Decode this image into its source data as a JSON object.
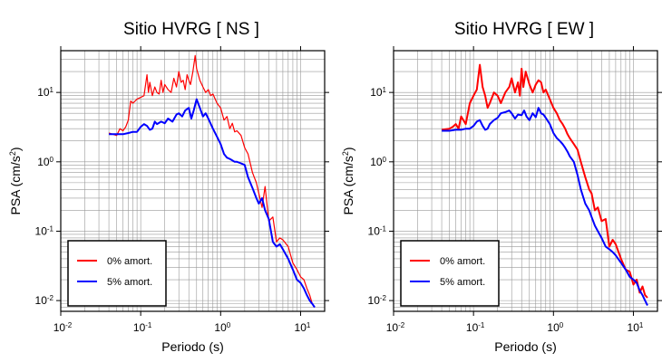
{
  "chart_data": [
    {
      "type": "line",
      "title": "Sitio HVRG [ NS ]",
      "xlabel": "Periodo (s)",
      "ylabel_main": "PSA (cm/s",
      "ylabel_sup": "2",
      "ylabel_close": ")",
      "xscale": "log",
      "yscale": "log",
      "xlim": [
        0.01,
        20
      ],
      "ylim": [
        0.007,
        40
      ],
      "grid": true,
      "legend_position": "bottom-left",
      "xticks": [
        {
          "value": 0.01,
          "base": "10",
          "exp": "-2"
        },
        {
          "value": 0.1,
          "base": "10",
          "exp": "-1"
        },
        {
          "value": 1,
          "base": "10",
          "exp": "0"
        },
        {
          "value": 10,
          "base": "10",
          "exp": "1"
        }
      ],
      "yticks": [
        {
          "value": 0.01,
          "base": "10",
          "exp": "-2"
        },
        {
          "value": 0.1,
          "base": "10",
          "exp": "-1"
        },
        {
          "value": 1,
          "base": "10",
          "exp": "0"
        },
        {
          "value": 10,
          "base": "10",
          "exp": "1"
        }
      ],
      "series": [
        {
          "name": "0% amort.",
          "color": "#ff0000",
          "x": [
            0.04,
            0.05,
            0.055,
            0.06,
            0.065,
            0.07,
            0.075,
            0.08,
            0.09,
            0.1,
            0.11,
            0.12,
            0.125,
            0.13,
            0.14,
            0.15,
            0.16,
            0.17,
            0.18,
            0.19,
            0.2,
            0.22,
            0.24,
            0.26,
            0.28,
            0.3,
            0.32,
            0.34,
            0.36,
            0.38,
            0.4,
            0.42,
            0.45,
            0.48,
            0.5,
            0.55,
            0.6,
            0.65,
            0.7,
            0.75,
            0.8,
            0.9,
            1.0,
            1.1,
            1.2,
            1.3,
            1.4,
            1.5,
            1.6,
            1.8,
            2.0,
            2.2,
            2.5,
            2.8,
            3.0,
            3.3,
            3.6,
            4.0,
            4.5,
            5.0,
            5.5,
            6.0,
            7.0,
            8.0,
            9.0,
            10.0,
            11.0,
            12.0,
            13.0,
            14.0,
            15.0
          ],
          "y": [
            2.6,
            2.4,
            3.0,
            2.8,
            3.2,
            4.0,
            7.5,
            7.0,
            8.0,
            8.5,
            9.0,
            18.0,
            10.0,
            14.0,
            9.0,
            12.0,
            10.0,
            9.5,
            15.0,
            10.0,
            13.0,
            11.0,
            10.0,
            16.0,
            12.0,
            20.0,
            14.0,
            15.0,
            11.0,
            18.0,
            15.0,
            13.0,
            20.0,
            34.0,
            22.0,
            15.0,
            12.0,
            10.0,
            11.0,
            9.0,
            9.5,
            7.0,
            6.0,
            4.0,
            4.5,
            3.0,
            3.6,
            2.7,
            2.8,
            2.4,
            1.6,
            1.3,
            0.7,
            0.5,
            0.35,
            0.22,
            0.44,
            0.14,
            0.16,
            0.07,
            0.08,
            0.075,
            0.06,
            0.035,
            0.028,
            0.022,
            0.02,
            0.015,
            0.012,
            0.009,
            0.008
          ]
        },
        {
          "name": "5% amort.",
          "color": "#0000ff",
          "x": [
            0.04,
            0.05,
            0.06,
            0.07,
            0.08,
            0.09,
            0.1,
            0.11,
            0.12,
            0.13,
            0.14,
            0.15,
            0.16,
            0.18,
            0.2,
            0.22,
            0.25,
            0.28,
            0.3,
            0.33,
            0.36,
            0.4,
            0.43,
            0.46,
            0.5,
            0.55,
            0.6,
            0.65,
            0.7,
            0.8,
            0.9,
            1.0,
            1.1,
            1.2,
            1.3,
            1.4,
            1.5,
            1.6,
            1.8,
            2.0,
            2.2,
            2.5,
            2.8,
            3.0,
            3.3,
            3.6,
            4.0,
            4.5,
            5.0,
            5.5,
            6.0,
            7.0,
            8.0,
            9.0,
            10.0,
            11.0,
            12.0,
            13.0,
            14.0,
            15.0
          ],
          "y": [
            2.5,
            2.5,
            2.5,
            2.6,
            2.7,
            2.7,
            3.2,
            3.5,
            3.3,
            2.9,
            3.0,
            3.8,
            3.5,
            3.8,
            3.6,
            4.2,
            3.8,
            4.8,
            5.0,
            4.5,
            5.5,
            6.0,
            4.2,
            5.5,
            8.0,
            6.0,
            4.5,
            5.0,
            4.2,
            3.0,
            2.3,
            1.8,
            1.3,
            1.15,
            1.1,
            1.05,
            1.0,
            1.0,
            0.95,
            0.9,
            0.6,
            0.42,
            0.3,
            0.25,
            0.3,
            0.2,
            0.15,
            0.07,
            0.06,
            0.065,
            0.055,
            0.04,
            0.028,
            0.02,
            0.018,
            0.015,
            0.012,
            0.01,
            0.009,
            0.008
          ]
        }
      ]
    },
    {
      "type": "line",
      "title": "Sitio HVRG [ EW ]",
      "xlabel": "Periodo (s)",
      "ylabel_main": "PSA (cm/s",
      "ylabel_sup": "2",
      "ylabel_close": ")",
      "xscale": "log",
      "yscale": "log",
      "xlim": [
        0.01,
        20
      ],
      "ylim": [
        0.007,
        40
      ],
      "grid": true,
      "legend_position": "bottom-left",
      "xticks": [
        {
          "value": 0.01,
          "base": "10",
          "exp": "-2"
        },
        {
          "value": 0.1,
          "base": "10",
          "exp": "-1"
        },
        {
          "value": 1,
          "base": "10",
          "exp": "0"
        },
        {
          "value": 10,
          "base": "10",
          "exp": "1"
        }
      ],
      "yticks": [
        {
          "value": 0.01,
          "base": "10",
          "exp": "-2"
        },
        {
          "value": 0.1,
          "base": "10",
          "exp": "-1"
        },
        {
          "value": 1,
          "base": "10",
          "exp": "0"
        },
        {
          "value": 10,
          "base": "10",
          "exp": "1"
        }
      ],
      "series": [
        {
          "name": "0% amort.",
          "color": "#ff0000",
          "x": [
            0.04,
            0.05,
            0.055,
            0.06,
            0.065,
            0.07,
            0.08,
            0.09,
            0.1,
            0.11,
            0.12,
            0.13,
            0.14,
            0.15,
            0.16,
            0.18,
            0.2,
            0.22,
            0.25,
            0.28,
            0.3,
            0.33,
            0.36,
            0.38,
            0.4,
            0.42,
            0.45,
            0.5,
            0.55,
            0.6,
            0.65,
            0.7,
            0.75,
            0.8,
            0.9,
            1.0,
            1.1,
            1.2,
            1.3,
            1.4,
            1.5,
            1.6,
            1.8,
            2.0,
            2.2,
            2.5,
            2.8,
            3.0,
            3.3,
            3.6,
            4.0,
            4.5,
            5.0,
            5.5,
            6.0,
            7.0,
            8.0,
            9.0,
            10.0,
            11.0,
            12.0,
            13.0,
            14.0,
            15.0
          ],
          "y": [
            2.9,
            3.0,
            3.2,
            3.5,
            3.0,
            4.5,
            3.5,
            7.0,
            9.0,
            11.0,
            25.0,
            12.0,
            9.0,
            6.0,
            7.0,
            10.0,
            9.0,
            7.0,
            10.0,
            12.0,
            16.0,
            10.0,
            14.0,
            9.0,
            22.0,
            12.0,
            20.0,
            13.0,
            10.0,
            13.0,
            15.0,
            14.0,
            10.0,
            11.0,
            8.0,
            6.0,
            5.0,
            4.0,
            3.5,
            3.0,
            2.5,
            2.2,
            1.8,
            1.5,
            1.0,
            0.6,
            0.4,
            0.35,
            0.2,
            0.22,
            0.14,
            0.15,
            0.06,
            0.075,
            0.065,
            0.04,
            0.028,
            0.026,
            0.017,
            0.02,
            0.013,
            0.016,
            0.012,
            0.011
          ]
        },
        {
          "name": "5% amort.",
          "color": "#0000ff",
          "x": [
            0.04,
            0.05,
            0.06,
            0.07,
            0.08,
            0.09,
            0.1,
            0.11,
            0.12,
            0.13,
            0.14,
            0.15,
            0.16,
            0.18,
            0.2,
            0.22,
            0.25,
            0.28,
            0.3,
            0.33,
            0.36,
            0.4,
            0.43,
            0.46,
            0.5,
            0.55,
            0.6,
            0.65,
            0.7,
            0.75,
            0.8,
            0.9,
            1.0,
            1.1,
            1.2,
            1.3,
            1.4,
            1.5,
            1.6,
            1.8,
            2.0,
            2.2,
            2.5,
            2.8,
            3.0,
            3.3,
            3.6,
            4.0,
            4.5,
            5.0,
            5.5,
            6.0,
            7.0,
            8.0,
            9.0,
            10.0,
            11.0,
            12.0,
            13.0,
            14.0,
            15.0
          ],
          "y": [
            2.8,
            2.8,
            2.9,
            2.9,
            3.0,
            3.0,
            3.3,
            3.8,
            4.0,
            3.3,
            2.9,
            3.0,
            3.5,
            4.0,
            4.3,
            5.0,
            5.2,
            5.5,
            5.0,
            4.2,
            4.8,
            4.7,
            5.5,
            4.5,
            4.0,
            5.0,
            4.4,
            6.0,
            5.0,
            4.8,
            4.3,
            3.5,
            2.6,
            2.2,
            2.0,
            1.8,
            1.6,
            1.4,
            1.2,
            1.0,
            0.65,
            0.4,
            0.25,
            0.2,
            0.16,
            0.12,
            0.1,
            0.08,
            0.06,
            0.055,
            0.05,
            0.045,
            0.035,
            0.028,
            0.022,
            0.02,
            0.018,
            0.014,
            0.012,
            0.01,
            0.0085
          ]
        }
      ]
    }
  ]
}
